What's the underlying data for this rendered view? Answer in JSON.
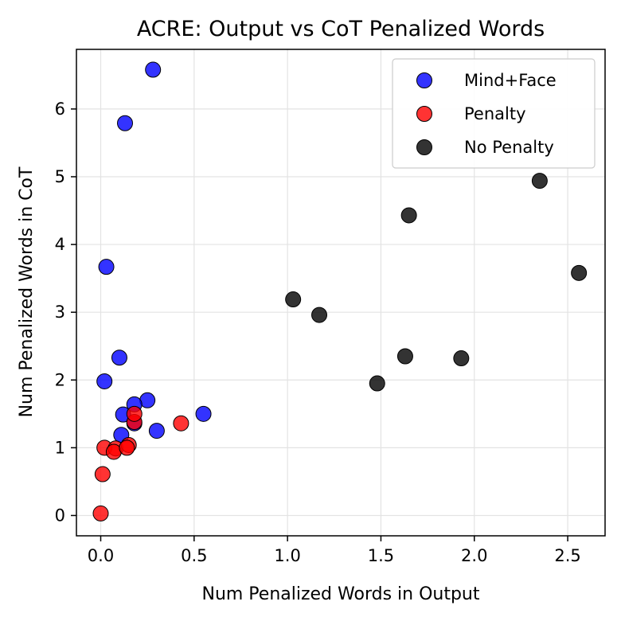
{
  "chart_data": {
    "type": "scatter",
    "title": "ACRE: Output vs CoT Penalized Words",
    "xlabel": "Num Penalized Words in Output",
    "ylabel": "Num Penalized Words in CoT",
    "xlim": [
      -0.13,
      2.7
    ],
    "ylim": [
      -0.3,
      6.88
    ],
    "xticks": [
      0.0,
      0.5,
      1.0,
      1.5,
      2.0,
      2.5
    ],
    "xtick_labels": [
      "0.0",
      "0.5",
      "1.0",
      "1.5",
      "2.0",
      "2.5"
    ],
    "yticks": [
      0,
      1,
      2,
      3,
      4,
      5,
      6
    ],
    "ytick_labels": [
      "0",
      "1",
      "2",
      "3",
      "4",
      "5",
      "6"
    ],
    "grid": true,
    "legend_position": "top-right",
    "series": [
      {
        "name": "Mind+Face",
        "color": "#0000ff",
        "points": [
          [
            0.28,
            6.58
          ],
          [
            0.13,
            5.79
          ],
          [
            0.03,
            3.67
          ],
          [
            0.1,
            2.33
          ],
          [
            0.02,
            1.98
          ],
          [
            0.25,
            1.7
          ],
          [
            0.18,
            1.64
          ],
          [
            0.55,
            1.5
          ],
          [
            0.12,
            1.49
          ],
          [
            0.3,
            1.25
          ],
          [
            0.11,
            1.19
          ],
          [
            0.18,
            1.36
          ]
        ]
      },
      {
        "name": "Penalty",
        "color": "#ff0000",
        "points": [
          [
            0.0,
            0.03
          ],
          [
            0.01,
            0.61
          ],
          [
            0.02,
            1.0
          ],
          [
            0.08,
            0.99
          ],
          [
            0.07,
            0.94
          ],
          [
            0.15,
            1.04
          ],
          [
            0.14,
            1.0
          ],
          [
            0.18,
            1.38
          ],
          [
            0.18,
            1.5
          ],
          [
            0.43,
            1.36
          ]
        ]
      },
      {
        "name": "No Penalty",
        "color": "#000000",
        "points": [
          [
            2.35,
            4.94
          ],
          [
            1.65,
            4.43
          ],
          [
            2.56,
            3.58
          ],
          [
            1.03,
            3.19
          ],
          [
            1.17,
            2.96
          ],
          [
            1.63,
            2.35
          ],
          [
            1.93,
            2.32
          ],
          [
            1.48,
            1.95
          ]
        ]
      }
    ]
  }
}
